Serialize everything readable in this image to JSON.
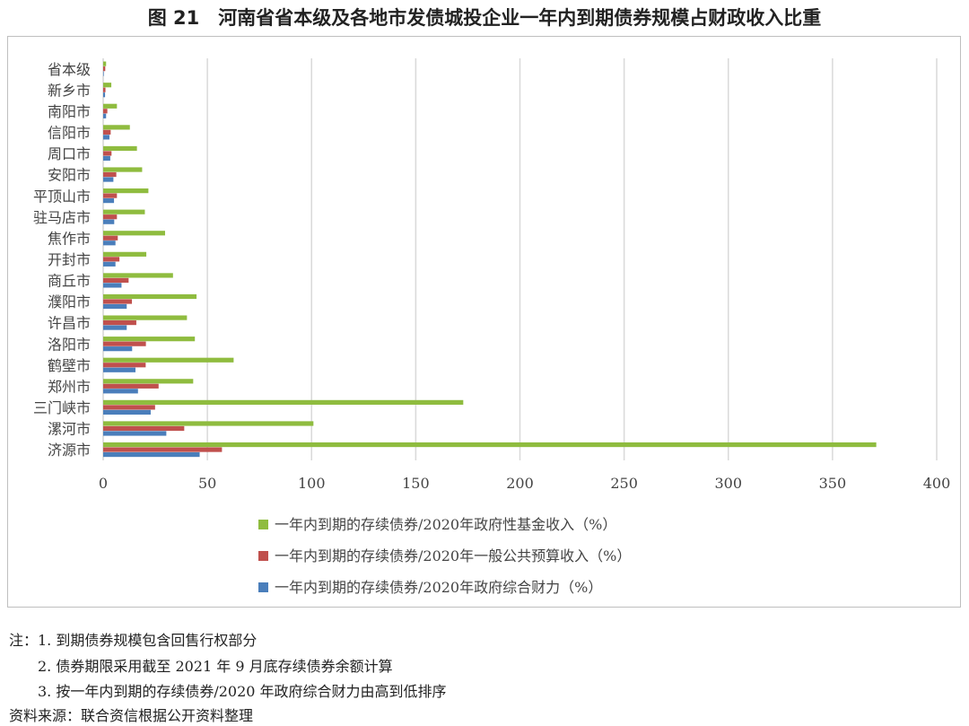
{
  "title": "图 21　河南省省本级及各地市发债城投企业一年内到期债券规模占财政收入比重",
  "chart_data": {
    "type": "bar",
    "orientation": "horizontal",
    "categories": [
      "省本级",
      "新乡市",
      "南阳市",
      "信阳市",
      "周口市",
      "安阳市",
      "平顶山市",
      "驻马店市",
      "焦作市",
      "开封市",
      "商丘市",
      "濮阳市",
      "许昌市",
      "洛阳市",
      "鹤壁市",
      "郑州市",
      "三门峡市",
      "漯河市",
      "济源市"
    ],
    "series": [
      {
        "name": "一年内到期的存续债券/2020年政府性基金收入（%）",
        "color": "#8fbc3f",
        "values": [
          1.4,
          3.9,
          6.6,
          12.8,
          16.2,
          18.7,
          21.7,
          20.0,
          29.7,
          20.7,
          33.5,
          44.8,
          40.2,
          44.0,
          62.6,
          43.2,
          172.8,
          100.9,
          371.0
        ]
      },
      {
        "name": "一年内到期的存续债券/2020年一般公共预算收入（%）",
        "color": "#c0504d",
        "values": [
          1.0,
          1.1,
          2.0,
          3.6,
          4.0,
          6.3,
          6.6,
          6.6,
          7.0,
          7.8,
          12.2,
          13.8,
          15.9,
          20.5,
          20.4,
          26.6,
          24.9,
          38.9,
          57.0
        ]
      },
      {
        "name": "一年内到期的存续债券/2020年政府综合财力（%）",
        "color": "#4a7ebb",
        "values": [
          0.3,
          0.9,
          1.4,
          3.0,
          3.4,
          4.9,
          5.2,
          5.3,
          5.9,
          5.9,
          8.8,
          11.3,
          11.3,
          13.9,
          15.5,
          16.7,
          22.8,
          30.3,
          46.3
        ]
      }
    ],
    "xlim": [
      0,
      400
    ],
    "xticks": [
      "0",
      "50",
      "100",
      "150",
      "200",
      "250",
      "300",
      "350",
      "400"
    ],
    "grid": true,
    "legend_position": "bottom"
  },
  "notes": [
    "注：1. 到期债券规模包含回售行权部分",
    "　　2. 债券期限采用截至 2021 年 9 月底存续债券余额计算",
    "　　3. 按一年内到期的存续债券/2020 年政府综合财力由高到低排序"
  ],
  "source": "资料来源：联合资信根据公开资料整理"
}
